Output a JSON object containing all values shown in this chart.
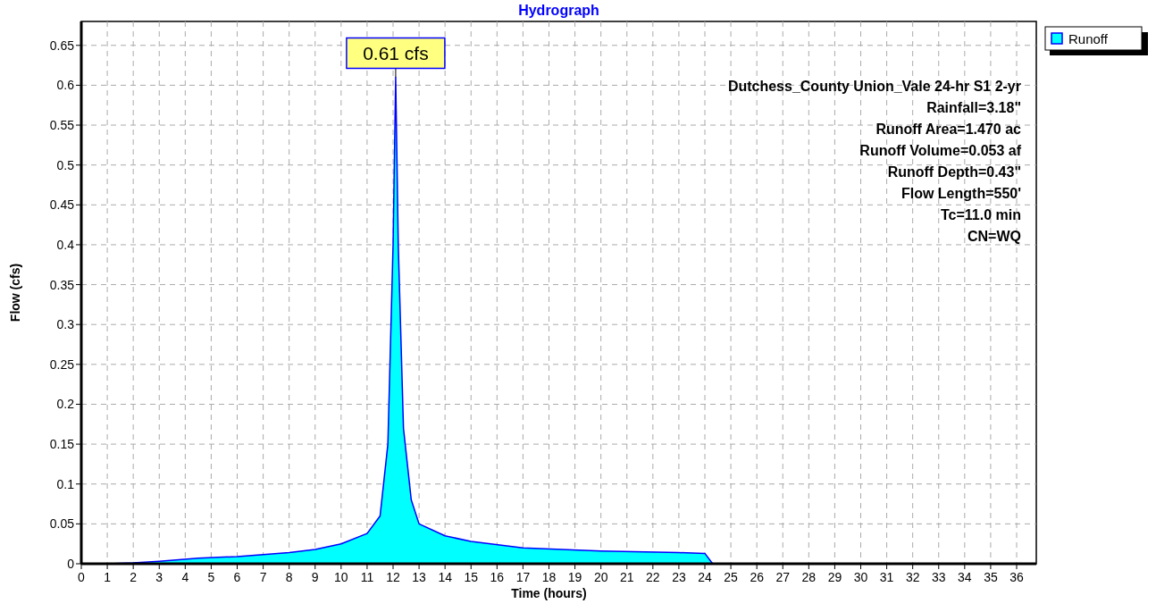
{
  "chart_data": {
    "type": "area",
    "title": "Hydrograph",
    "xlabel": "Time  (hours)",
    "ylabel": "Flow  (cfs)",
    "x": [
      0,
      1,
      2,
      3,
      4.5,
      6,
      8,
      9,
      10,
      11,
      11.5,
      11.8,
      12,
      12.1,
      12.2,
      12.4,
      12.7,
      13,
      14,
      15,
      17,
      20,
      23,
      24,
      24.3,
      36
    ],
    "series": [
      {
        "name": "Runoff",
        "color": "#00ffff",
        "values": [
          0,
          0,
          0.001,
          0.003,
          0.007,
          0.009,
          0.014,
          0.018,
          0.025,
          0.038,
          0.06,
          0.15,
          0.4,
          0.61,
          0.4,
          0.17,
          0.08,
          0.05,
          0.035,
          0.028,
          0.02,
          0.016,
          0.014,
          0.013,
          0,
          0
        ]
      }
    ],
    "xlim": [
      0,
      36
    ],
    "ylim": [
      0,
      0.68
    ],
    "xticks": [
      0,
      1,
      2,
      3,
      4,
      5,
      6,
      7,
      8,
      9,
      10,
      11,
      12,
      13,
      14,
      15,
      16,
      17,
      18,
      19,
      20,
      21,
      22,
      23,
      24,
      25,
      26,
      27,
      28,
      29,
      30,
      31,
      32,
      33,
      34,
      35,
      36
    ],
    "yticks": [
      0,
      0.05,
      0.1,
      0.15,
      0.2,
      0.25,
      0.3,
      0.35,
      0.4,
      0.45,
      0.5,
      0.55,
      0.6,
      0.65
    ],
    "grid": true,
    "legend": "top right",
    "annotations": [
      {
        "text": "0.61 cfs",
        "x": 12.1,
        "y": 0.61
      },
      "Dutchess_County Union_Vale 24-hr S1 2-yr",
      "Rainfall=3.18\"",
      "Runoff Area=1.470 ac",
      "Runoff Volume=0.053 af",
      "Runoff Depth=0.43\"",
      "Flow Length=550'",
      "Tc=11.0 min",
      "CN=WQ"
    ]
  }
}
